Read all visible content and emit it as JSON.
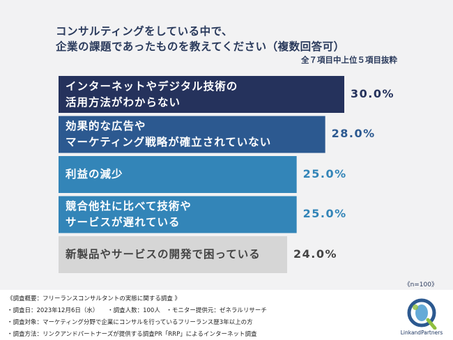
{
  "title_line1": "コンサルティングをしている中で、",
  "title_line2": "企業の課題であったものを教えてください（複数回答可）",
  "subtitle": "全７項目中上位５項目抜粋",
  "sample_size": "《n=100》",
  "chart_data": {
    "type": "bar",
    "orientation": "horizontal",
    "categories": [
      [
        "インターネットやデジタル技術の",
        "活用方法がわからない"
      ],
      [
        "効果的な広告や",
        "マーケティング戦略が確立されていない"
      ],
      [
        "利益の減少"
      ],
      [
        "競合他社に比べて技術や",
        "サービスが遅れている"
      ],
      [
        "新製品やサービスの開発で困っている"
      ]
    ],
    "values": [
      30.0,
      28.0,
      25.0,
      25.0,
      24.0
    ],
    "value_labels": [
      "30.0%",
      "28.0%",
      "25.0%",
      "25.0%",
      "24.0%"
    ],
    "bar_colors": [
      "#25325c",
      "#2c5990",
      "#3385b8",
      "#3385b8",
      "#d6d6d6"
    ],
    "label_colors": [
      "#ffffff",
      "#ffffff",
      "#ffffff",
      "#ffffff",
      "#444444"
    ],
    "value_colors": [
      "#25325c",
      "#2c5990",
      "#3385b8",
      "#3385b8",
      "#444444"
    ]
  },
  "notes": [
    "《調査概要：フリーランスコンサルタントの実態に関する調査 》",
    "・調査日：2023年12月6日（水）　　・調査人数：100人　・モニター提供元：ゼネラルリサーチ",
    "・調査対象：マーケティング分野で企業にコンサルを行っているフリーランス歴3年以上の方",
    "・調査方法：リンクアンドパートナーズが提供する調査PR「RRP」によるインターネット調査"
  ],
  "logo_text": "LinkandPartners"
}
